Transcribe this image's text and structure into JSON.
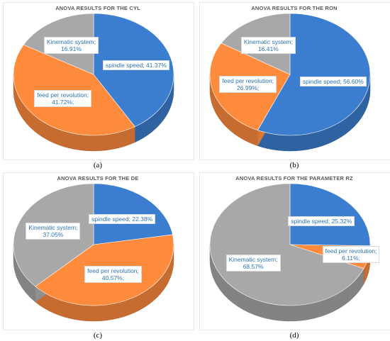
{
  "chart_data": [
    {
      "type": "pie",
      "title": "ANOVA RESULTS FOR THE CYL",
      "caption": "(a)",
      "slices": [
        {
          "name": "spindle speed",
          "value": 41.37,
          "text": "spindle speed; 41.37%",
          "color": "#3b7dce"
        },
        {
          "name": "feed per revolution",
          "value": 41.72,
          "text": "feed per revolution; 41.72%;",
          "color": "#ff8b3d"
        },
        {
          "name": "Kinematic system",
          "value": 16.91,
          "text": "Kinematic system; 16.91%",
          "color": "#a8a8a8"
        }
      ]
    },
    {
      "type": "pie",
      "title": "ANOVA RESULTS FOR THE RON",
      "caption": "(b)",
      "slices": [
        {
          "name": "spindle speed",
          "value": 56.6,
          "text": "spindle speed; 56.60%",
          "color": "#3b7dce"
        },
        {
          "name": "feed per revolution",
          "value": 26.99,
          "text": "feed per revolution; 26.99%;",
          "color": "#ff8b3d"
        },
        {
          "name": "Kinematic system",
          "value": 16.41,
          "text": "Kinematic system; 16.41%",
          "color": "#a8a8a8"
        }
      ]
    },
    {
      "type": "pie",
      "title": "ANOVA RESULTS FOR THE DE",
      "caption": "(c)",
      "slices": [
        {
          "name": "spindle speed",
          "value": 22.38,
          "text": "spindle speed; 22.38%",
          "color": "#3b7dce"
        },
        {
          "name": "feed per revolution",
          "value": 40.57,
          "text": "feed per revolution; 40.57%;",
          "color": "#ff8b3d"
        },
        {
          "name": "Kinematic system",
          "value": 37.05,
          "text": "Kinematic system; 37.05%",
          "color": "#a8a8a8"
        }
      ]
    },
    {
      "type": "pie",
      "title": "ANOVA RESULTS FOR THE PARAMETER RZ",
      "caption": "(d)",
      "slices": [
        {
          "name": "spindle speed",
          "value": 25.32,
          "text": "spindle speed; 25.32%",
          "color": "#3b7dce"
        },
        {
          "name": "feed per revolution",
          "value": 6.11,
          "text": "feed per revolution; 6.11%;",
          "color": "#ff8b3d"
        },
        {
          "name": "Kinematic system",
          "value": 68.57,
          "text": "Kinematic system; 68.57%",
          "color": "#a8a8a8"
        }
      ]
    }
  ]
}
